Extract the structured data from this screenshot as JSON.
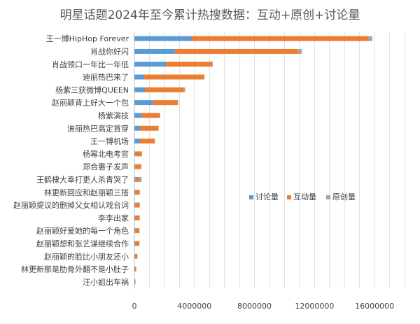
{
  "chart_data": {
    "type": "bar",
    "orientation": "horizontal",
    "stacked": true,
    "title": "明星话题2024年至今累计热搜数据：互动+原创+讨论量",
    "categories": [
      "王一博HipHop Forever",
      "肖战你好闪",
      "肖战领口一年比一年低",
      "迪丽热巴来了",
      "杨紫三获微博QUEEN",
      "赵丽颖背上好大一个包",
      "杨紫演技",
      "迪丽热巴高定首穿",
      "王一博机场",
      "杨幂北电考官",
      "郑合惠子发声",
      "王鹤棣大奉打更人杀青哭了",
      "林更新回应和赵丽颖三搭",
      "赵丽颖提议的删掉父女相认戏台词",
      "李李出家",
      "赵丽颖好爱她的每一个角色",
      "赵丽颖想和张艺谋继续合作",
      "赵丽颖的脸比小朋友还小",
      "林更新那是肋骨外翻不是小肚子",
      "汪小姐出车祸"
    ],
    "series": [
      {
        "name": "讨论量",
        "color": "#5b9bd5",
        "values": [
          3800000,
          2700000,
          2100000,
          650000,
          700000,
          1250000,
          500000,
          350000,
          350000,
          50000,
          50000,
          80000,
          50000,
          50000,
          50000,
          50000,
          50000,
          30000,
          20000,
          10000
        ]
      },
      {
        "name": "互动量",
        "color": "#ed7d31",
        "values": [
          11800000,
          8200000,
          3100000,
          4000000,
          2600000,
          1650000,
          1200000,
          1250000,
          1000000,
          450000,
          400000,
          250000,
          300000,
          300000,
          300000,
          280000,
          280000,
          170000,
          100000,
          60000
        ]
      },
      {
        "name": "原创量",
        "color": "#a5a5a5",
        "values": [
          250000,
          250000,
          20000,
          20000,
          80000,
          20000,
          20000,
          20000,
          20000,
          10000,
          10000,
          150000,
          10000,
          10000,
          10000,
          10000,
          10000,
          5000,
          5000,
          5000
        ]
      }
    ],
    "x_ticks": [
      "0",
      "4000000",
      "8000000",
      "12000000",
      "16000000"
    ],
    "xlim": [
      0,
      18000000
    ],
    "grid": true,
    "legend_position": "center-right"
  }
}
